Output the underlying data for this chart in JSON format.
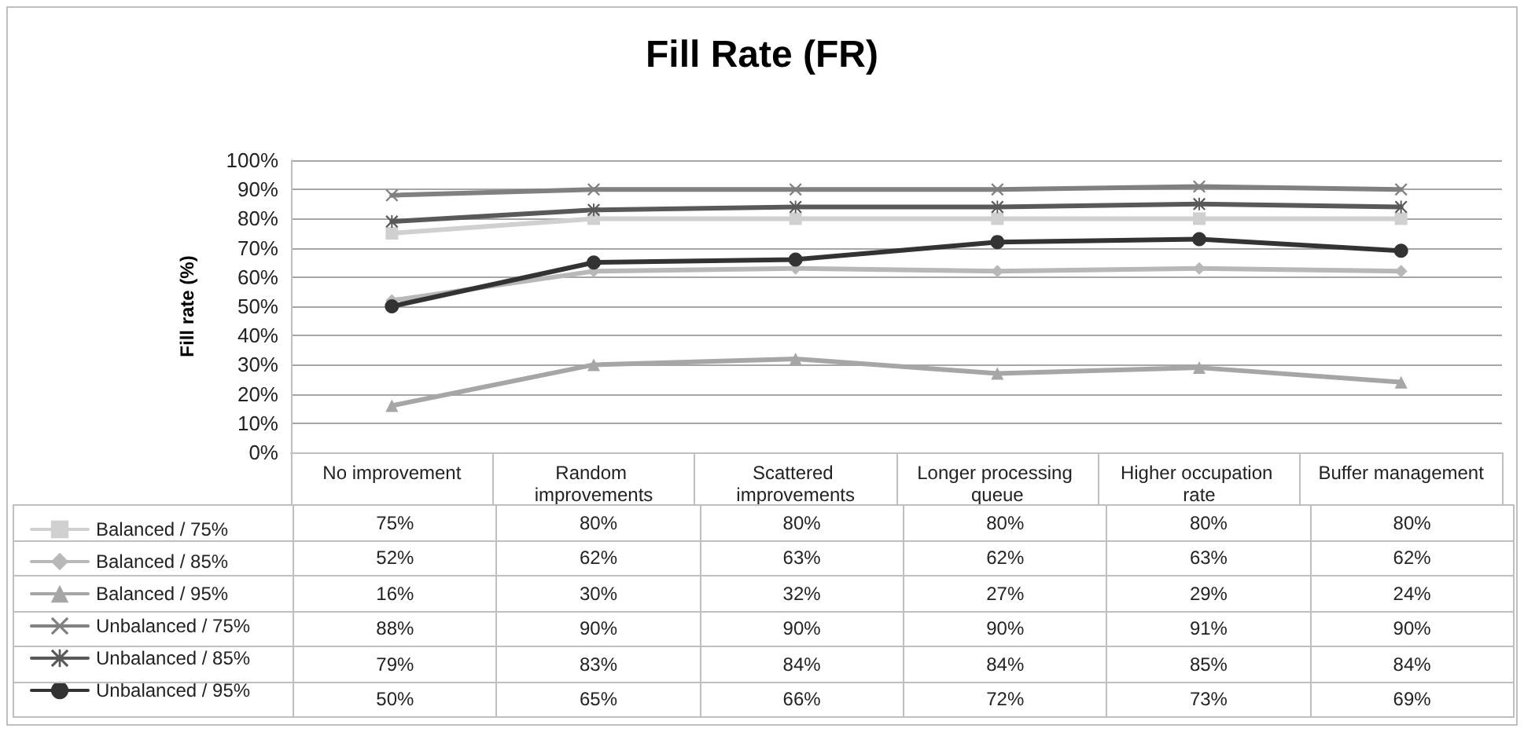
{
  "chart_data": {
    "type": "line",
    "title": "Fill Rate (FR)",
    "ylabel": "Fill rate (%)",
    "categories": [
      "No improvement",
      "Random improvements",
      "Scattered improvements",
      "Longer processing queue",
      "Higher occupation rate",
      "Buffer management"
    ],
    "series": [
      {
        "name": "Balanced / 75%",
        "color": "#d0d0d0",
        "marker": "square",
        "values": [
          75,
          80,
          80,
          80,
          80,
          80
        ],
        "value_labels": [
          "75%",
          "80%",
          "80%",
          "80%",
          "80%",
          "80%"
        ]
      },
      {
        "name": "Balanced / 85%",
        "color": "#b8b8b8",
        "marker": "diamond",
        "values": [
          52,
          62,
          63,
          62,
          63,
          62
        ],
        "value_labels": [
          "52%",
          "62%",
          "63%",
          "62%",
          "63%",
          "62%"
        ]
      },
      {
        "name": "Balanced / 95%",
        "color": "#a6a6a6",
        "marker": "triangle",
        "values": [
          16,
          30,
          32,
          27,
          29,
          24
        ],
        "value_labels": [
          "16%",
          "30%",
          "32%",
          "27%",
          "29%",
          "24%"
        ]
      },
      {
        "name": "Unbalanced / 75%",
        "color": "#808080",
        "marker": "cross",
        "values": [
          88,
          90,
          90,
          90,
          91,
          90
        ],
        "value_labels": [
          "88%",
          "90%",
          "90%",
          "90%",
          "91%",
          "90%"
        ]
      },
      {
        "name": "Unbalanced / 85%",
        "color": "#595959",
        "marker": "star",
        "values": [
          79,
          83,
          84,
          84,
          85,
          84
        ],
        "value_labels": [
          "79%",
          "83%",
          "84%",
          "84%",
          "85%",
          "84%"
        ]
      },
      {
        "name": "Unbalanced / 95%",
        "color": "#333333",
        "marker": "circle",
        "values": [
          50,
          65,
          66,
          72,
          73,
          69
        ],
        "value_labels": [
          "50%",
          "65%",
          "66%",
          "72%",
          "73%",
          "69%"
        ]
      }
    ],
    "ylim": [
      0,
      100
    ],
    "yticks": [
      {
        "value": 0,
        "label": "0%"
      },
      {
        "value": 10,
        "label": "10%"
      },
      {
        "value": 20,
        "label": "20%"
      },
      {
        "value": 30,
        "label": "30%"
      },
      {
        "value": 40,
        "label": "40%"
      },
      {
        "value": 50,
        "label": "50%"
      },
      {
        "value": 60,
        "label": "60%"
      },
      {
        "value": 70,
        "label": "70%"
      },
      {
        "value": 80,
        "label": "80%"
      },
      {
        "value": 90,
        "label": "90%"
      },
      {
        "value": 100,
        "label": "100%"
      }
    ],
    "grid": "y",
    "legend": "bottom left",
    "line_style": "solid"
  }
}
